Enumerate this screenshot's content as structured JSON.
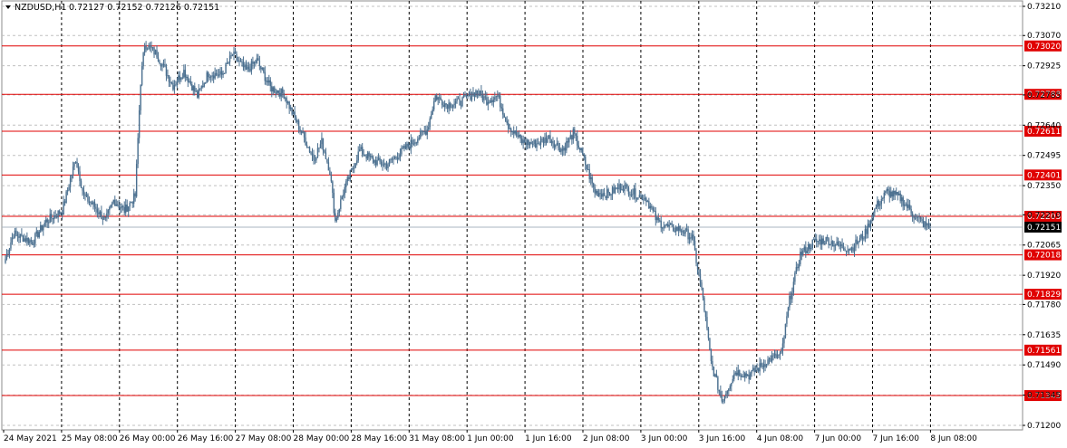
{
  "header": {
    "symbol_tf": "NZDUSD,H1",
    "ohlc": "0.72127 0.72152 0.72126 0.72151"
  },
  "chart_data": {
    "type": "candlestick",
    "symbol": "NZDUSD",
    "timeframe": "H1",
    "ylim": [
      0.712,
      0.7321
    ],
    "y_ticks": [
      "0.73210",
      "0.73070",
      "0.72925",
      "0.72785",
      "0.72640",
      "0.72495",
      "0.72350",
      "0.72210",
      "0.72065",
      "0.71920",
      "0.71780",
      "0.71635",
      "0.71490",
      "0.71345",
      "0.71200"
    ],
    "x_labels": [
      "24 May 2021",
      "25 May 08:00",
      "26 May 00:00",
      "26 May 16:00",
      "27 May 08:00",
      "28 May 00:00",
      "28 May 16:00",
      "31 May 08:00",
      "1 Jun 00:00",
      "1 Jun 16:00",
      "2 Jun 08:00",
      "3 Jun 00:00",
      "3 Jun 16:00",
      "4 Jun 08:00",
      "7 Jun 00:00",
      "7 Jun 16:00",
      "8 Jun 08:00"
    ],
    "grid": true,
    "levels": [
      "0.73020",
      "0.72788",
      "0.72611",
      "0.72401",
      "0.72203",
      "0.72018",
      "0.71829",
      "0.71561",
      "0.71343"
    ],
    "current_price": "0.72151",
    "colors": {
      "candle": "#4a6f8f",
      "level": "#e00000",
      "grid": "#c0c0c0",
      "current_bg": "#000000"
    },
    "path_points": [
      [
        0,
        0.72
      ],
      [
        6,
        0.7212
      ],
      [
        20,
        0.7208
      ],
      [
        30,
        0.7218
      ],
      [
        42,
        0.7223
      ],
      [
        52,
        0.7248
      ],
      [
        58,
        0.723
      ],
      [
        66,
        0.7225
      ],
      [
        74,
        0.7218
      ],
      [
        80,
        0.7228
      ],
      [
        88,
        0.7223
      ],
      [
        96,
        0.723
      ],
      [
        100,
        0.7285
      ],
      [
        103,
        0.7303
      ],
      [
        112,
        0.7298
      ],
      [
        124,
        0.7283
      ],
      [
        132,
        0.729
      ],
      [
        142,
        0.7278
      ],
      [
        150,
        0.7289
      ],
      [
        160,
        0.7288
      ],
      [
        168,
        0.7298
      ],
      [
        178,
        0.729
      ],
      [
        186,
        0.7295
      ],
      [
        196,
        0.7282
      ],
      [
        206,
        0.7279
      ],
      [
        212,
        0.727
      ],
      [
        218,
        0.7262
      ],
      [
        228,
        0.7248
      ],
      [
        234,
        0.7256
      ],
      [
        240,
        0.7242
      ],
      [
        244,
        0.7218
      ],
      [
        250,
        0.7232
      ],
      [
        262,
        0.7252
      ],
      [
        272,
        0.7247
      ],
      [
        282,
        0.7245
      ],
      [
        298,
        0.7254
      ],
      [
        312,
        0.7262
      ],
      [
        318,
        0.7278
      ],
      [
        326,
        0.7274
      ],
      [
        336,
        0.7275
      ],
      [
        348,
        0.728
      ],
      [
        356,
        0.7276
      ],
      [
        364,
        0.7278
      ],
      [
        372,
        0.7264
      ],
      [
        382,
        0.7256
      ],
      [
        392,
        0.7255
      ],
      [
        402,
        0.7258
      ],
      [
        412,
        0.7252
      ],
      [
        420,
        0.726
      ],
      [
        426,
        0.7251
      ],
      [
        436,
        0.7232
      ],
      [
        446,
        0.7231
      ],
      [
        456,
        0.7235
      ],
      [
        466,
        0.7231
      ],
      [
        474,
        0.7229
      ],
      [
        482,
        0.7218
      ],
      [
        490,
        0.7215
      ],
      [
        500,
        0.7214
      ],
      [
        508,
        0.721
      ],
      [
        516,
        0.7181
      ],
      [
        522,
        0.715
      ],
      [
        530,
        0.7132
      ],
      [
        540,
        0.7146
      ],
      [
        550,
        0.7144
      ],
      [
        558,
        0.7148
      ],
      [
        566,
        0.7152
      ],
      [
        574,
        0.7154
      ],
      [
        580,
        0.718
      ],
      [
        588,
        0.7202
      ],
      [
        598,
        0.7208
      ],
      [
        608,
        0.7209
      ],
      [
        616,
        0.7206
      ],
      [
        626,
        0.7205
      ],
      [
        636,
        0.7212
      ],
      [
        644,
        0.7225
      ],
      [
        652,
        0.7232
      ],
      [
        662,
        0.7229
      ],
      [
        672,
        0.7221
      ],
      [
        680,
        0.7216
      ],
      [
        684,
        0.72151
      ]
    ]
  }
}
